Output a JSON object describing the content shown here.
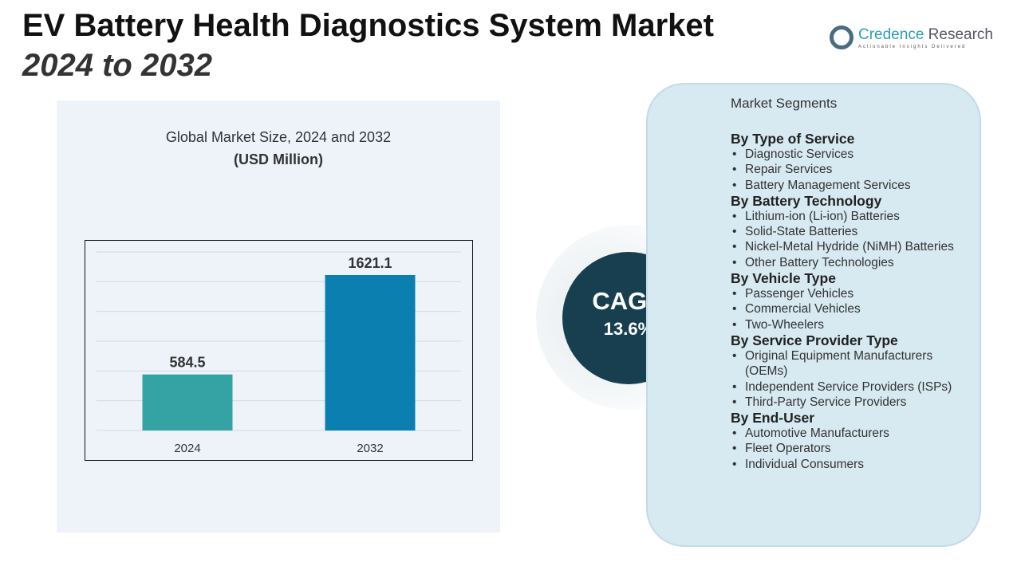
{
  "title": {
    "line1": "EV Battery Health Diagnostics System Market",
    "line2": "2024 to 2032"
  },
  "logo": {
    "brand1": "Credence",
    "brand2": "Research",
    "tagline": "Actionable Insights Delivered"
  },
  "chart_data": {
    "type": "bar",
    "title": "Global Market Size, 2024 and 2032",
    "subtitle": "(USD Million)",
    "categories": [
      "2024",
      "2032"
    ],
    "values": [
      584.5,
      1621.1
    ],
    "data_labels": [
      "584.5",
      "1621.1"
    ],
    "colors": [
      "#35a3a3",
      "#0a7fb0"
    ],
    "grid": true,
    "legend": "none"
  },
  "cagr": {
    "label": "CAGR",
    "value": "13.6%"
  },
  "segments": {
    "header": "Market Segments",
    "groups": [
      {
        "title": "By Type of Service",
        "items": [
          "Diagnostic Services",
          "Repair Services",
          "Battery Management Services"
        ]
      },
      {
        "title": "By Battery Technology",
        "items": [
          "Lithium-ion (Li-ion) Batteries",
          "Solid-State Batteries",
          "Nickel-Metal Hydride (NiMH) Batteries",
          "Other Battery Technologies"
        ]
      },
      {
        "title": "By Vehicle Type",
        "items": [
          "Passenger Vehicles",
          "Commercial Vehicles",
          "Two-Wheelers"
        ]
      },
      {
        "title": "By Service Provider Type",
        "items": [
          "Original Equipment Manufacturers (OEMs)",
          "Independent Service Providers (ISPs)",
          "Third-Party Service Providers"
        ]
      },
      {
        "title": "By End-User",
        "items": [
          "Automotive Manufacturers",
          "Fleet Operators",
          "Individual Consumers"
        ]
      }
    ]
  }
}
